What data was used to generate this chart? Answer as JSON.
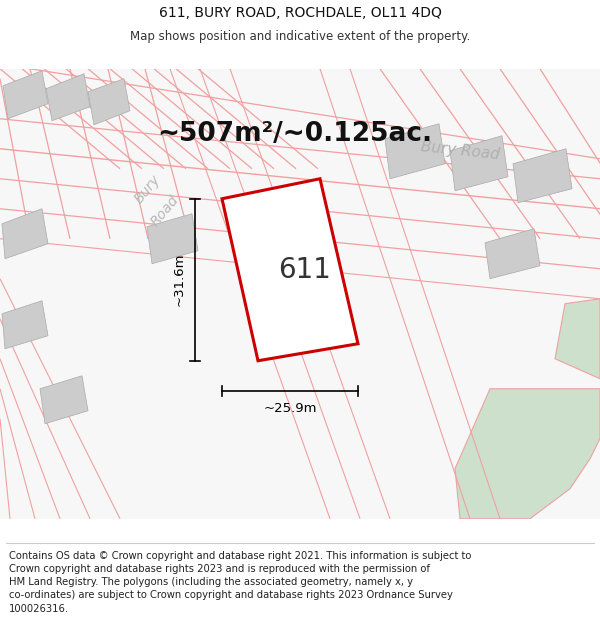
{
  "title": "611, BURY ROAD, ROCHDALE, OL11 4DQ",
  "subtitle": "Map shows position and indicative extent of the property.",
  "footer": "Contains OS data © Crown copyright and database right 2021. This information is subject to\nCrown copyright and database rights 2023 and is reproduced with the permission of\nHM Land Registry. The polygons (including the associated geometry, namely x, y\nco-ordinates) are subject to Crown copyright and database rights 2023 Ordnance Survey\n100026316.",
  "area_label": "~507m²/~0.125ac.",
  "width_label": "~25.9m",
  "height_label": "~31.6m",
  "number_label": "611",
  "map_bg": "#f7f7f7",
  "plot_color_fill": "#ffffff",
  "plot_color_edge": "#cc0000",
  "green_area_color": "#cce0cc",
  "grey_block_color": "#cccccc",
  "road_line_color": "#f0a0a0",
  "title_fontsize": 10,
  "subtitle_fontsize": 8.5,
  "footer_fontsize": 7.2,
  "area_label_fontsize": 19,
  "number_label_fontsize": 20,
  "dim_label_fontsize": 9.5,
  "road_label_fontsize": 11
}
